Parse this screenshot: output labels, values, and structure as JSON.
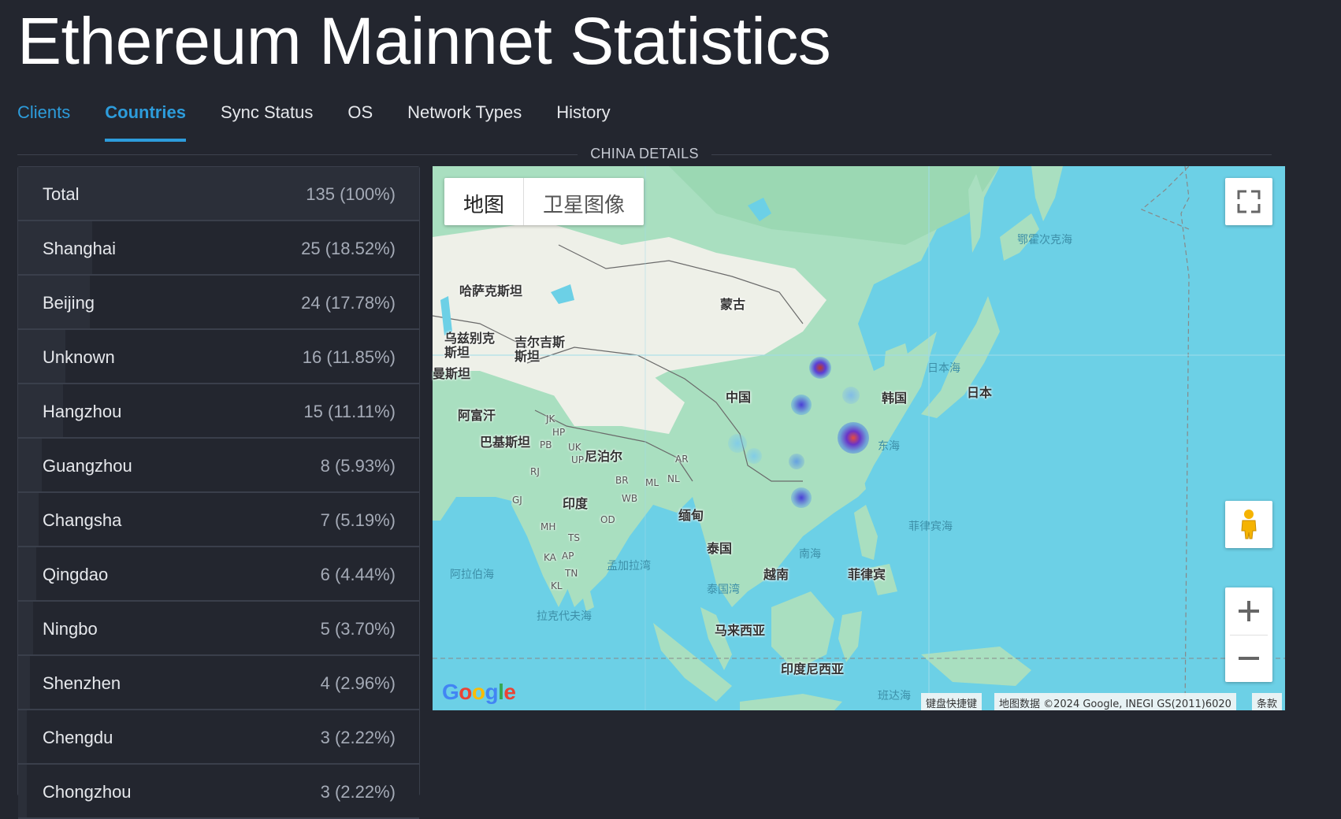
{
  "page_title": "Ethereum Mainnet Statistics",
  "tabs": [
    {
      "label": "Clients"
    },
    {
      "label": "Countries"
    },
    {
      "label": "Sync Status"
    },
    {
      "label": "OS"
    },
    {
      "label": "Network Types"
    },
    {
      "label": "History"
    }
  ],
  "section_label": "CHINA DETAILS",
  "table": {
    "rows": [
      {
        "name": "Total",
        "value": "135 (100%)",
        "share": 1.0
      },
      {
        "name": "Shanghai",
        "value": "25 (18.52%)",
        "share": 0.1852
      },
      {
        "name": "Beijing",
        "value": "24 (17.78%)",
        "share": 0.1778
      },
      {
        "name": "Unknown",
        "value": "16 (11.85%)",
        "share": 0.1185
      },
      {
        "name": "Hangzhou",
        "value": "15 (11.11%)",
        "share": 0.1111
      },
      {
        "name": "Guangzhou",
        "value": "8 (5.93%)",
        "share": 0.0593
      },
      {
        "name": "Changsha",
        "value": "7 (5.19%)",
        "share": 0.0519
      },
      {
        "name": "Qingdao",
        "value": "6 (4.44%)",
        "share": 0.0444
      },
      {
        "name": "Ningbo",
        "value": "5 (3.70%)",
        "share": 0.037
      },
      {
        "name": "Shenzhen",
        "value": "4 (2.96%)",
        "share": 0.0296
      },
      {
        "name": "Chengdu",
        "value": "3 (2.22%)",
        "share": 0.0222
      },
      {
        "name": "Chongzhou",
        "value": "3 (2.22%)",
        "share": 0.0222
      }
    ]
  },
  "map": {
    "type_map": "地图",
    "type_satellite": "卫星图像",
    "labels": {
      "kazakhstan": "哈萨克斯坦",
      "mongolia": "蒙古",
      "uzbekistan": "乌兹别克\n斯坦",
      "kyrgyzstan": "吉尔吉斯\n斯坦",
      "turkmenistan": "曼斯坦",
      "afghanistan": "阿富汗",
      "pakistan": "巴基斯坦",
      "china": "中国",
      "korea": "韩国",
      "japan": "日本",
      "nepal": "尼泊尔",
      "india": "印度",
      "myanmar": "缅甸",
      "thailand": "泰国",
      "vietnam": "越南",
      "philippines": "菲律宾",
      "malaysia": "马来西亚",
      "indonesia": "印度尼西亚",
      "sea_of_japan": "日本海",
      "east_china_sea": "东海",
      "philippine_sea": "菲律宾海",
      "south_china_sea": "南海",
      "bay_of_bengal": "孟加拉湾",
      "arabian_sea": "阿拉伯海",
      "laccadive_sea": "拉克代夫海",
      "gulf_of_thailand": "泰国湾",
      "banda_sea": "班达海",
      "okhotsk_sea": "鄂霍次克海",
      "jk": "JK",
      "hp": "HP",
      "pb": "PB",
      "uk": "UK",
      "up": "UP",
      "rj": "RJ",
      "gj": "GJ",
      "mh": "MH",
      "ts": "TS",
      "ka": "KA",
      "ap": "AP",
      "tn": "TN",
      "kl": "KL",
      "od": "OD",
      "wb": "WB",
      "br": "BR",
      "ml": "ML",
      "nl": "NL",
      "ar": "AR"
    },
    "attribution_shortcuts": "键盘快捷键",
    "attribution_data": "地图数据 ©2024 Google, INEGI GS(2011)6020",
    "attribution_terms": "条款",
    "google_logo": "Google",
    "colors": {
      "water": "#6cd0e6",
      "land": "#a9dfc0",
      "desert": "#eef0e8",
      "accent": "#2d9cdb"
    }
  }
}
